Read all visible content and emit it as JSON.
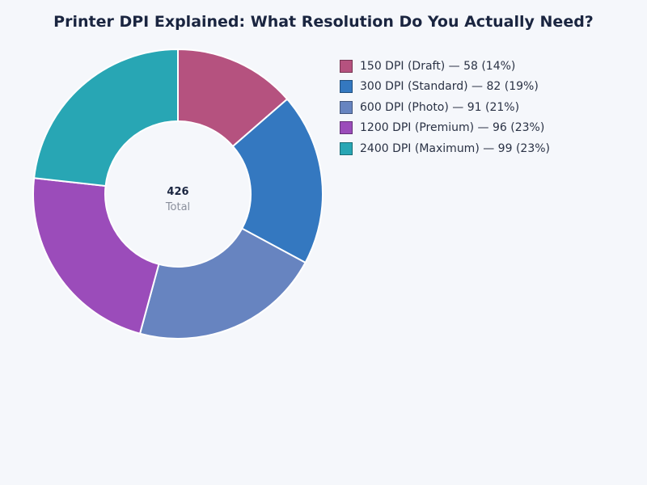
{
  "chart_data": {
    "type": "pie",
    "variant": "donut",
    "title": "Printer DPI Explained: What Resolution Do You Actually Need?",
    "categories": [
      "150 DPI (Draft)",
      "300 DPI (Standard)",
      "600 DPI (Photo)",
      "1200 DPI (Premium)",
      "2400 DPI (Maximum)"
    ],
    "values": [
      58,
      82,
      91,
      96,
      99
    ],
    "percent_labels": [
      "14%",
      "19%",
      "21%",
      "23%",
      "23%"
    ],
    "colors": [
      "#b5527f",
      "#3478c0",
      "#6784c0",
      "#9b4cba",
      "#28a6b4"
    ],
    "center_value": "426",
    "center_label": "Total",
    "legend_placement": "right"
  }
}
